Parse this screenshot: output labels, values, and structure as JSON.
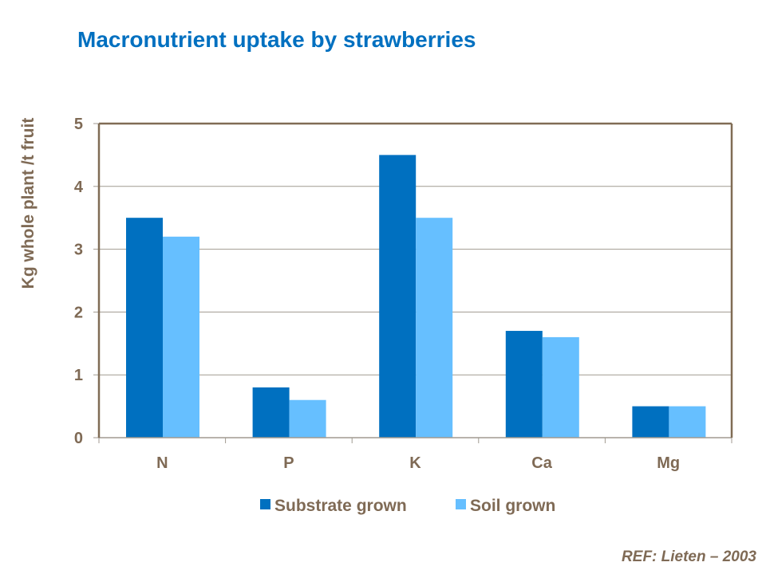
{
  "chart_data": {
    "type": "bar",
    "title": "Macronutrient uptake by strawberries",
    "ylabel": "Kg whole plant /t fruit",
    "xlabel": "",
    "categories": [
      "N",
      "P",
      "K",
      "Ca",
      "Mg"
    ],
    "series": [
      {
        "name": "Substrate grown",
        "values": [
          3.5,
          0.8,
          4.5,
          1.7,
          0.5
        ],
        "color": "#0070c0"
      },
      {
        "name": "Soil grown",
        "values": [
          3.2,
          0.6,
          3.5,
          1.6,
          0.5
        ],
        "color": "#66bfff"
      }
    ],
    "ylim": [
      0,
      5
    ],
    "yticks": [
      "0",
      "1",
      "2",
      "3",
      "4",
      "5"
    ],
    "grid": true,
    "legend": "bottom"
  },
  "reference": "REF:  Lieten – 2003"
}
